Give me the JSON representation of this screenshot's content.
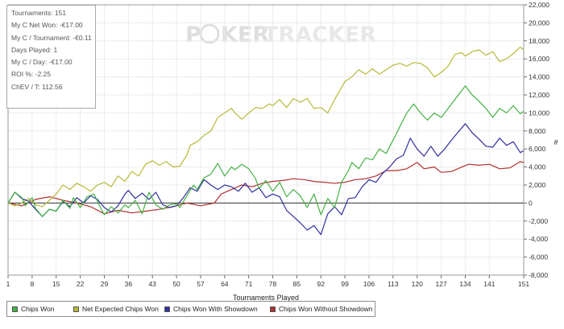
{
  "stats_box": {
    "lines": [
      "Tournaments: 151",
      "My C Net Won: -€17.00",
      "My C / Tournament: -€0.11",
      "Days Played: 1",
      "My C / Day: -€17.00",
      "ROI %: -2.25",
      "ChEV / T: 112.56"
    ]
  },
  "watermark": {
    "text_a": "P",
    "text_b": "KER",
    "text_c": "TRACKER"
  },
  "chart_data": {
    "type": "line",
    "title": "",
    "xlabel": "Tournaments Played",
    "ylabel": "",
    "y_axis_unit": "#",
    "x_range": [
      1,
      151
    ],
    "xlim": [
      1,
      151
    ],
    "ylim": [
      -8000,
      22000
    ],
    "x_ticks": [
      1,
      8,
      15,
      22,
      29,
      36,
      43,
      50,
      57,
      64,
      71,
      78,
      85,
      92,
      99,
      106,
      113,
      120,
      127,
      134,
      141,
      151
    ],
    "y_ticks": [
      -8000,
      -6000,
      -4000,
      -2000,
      0,
      2000,
      4000,
      6000,
      8000,
      10000,
      12000,
      14000,
      16000,
      18000,
      20000,
      22000
    ],
    "y_tick_labels": [
      "-8,000",
      "-6,000",
      "-4,000",
      "-2,000",
      "0",
      "2,000",
      "4,000",
      "6,000",
      "8,000",
      "10,000",
      "12,000",
      "14,000",
      "16,000",
      "18,000",
      "20,000",
      "22,000"
    ],
    "grid": true,
    "legend_position": "bottom-left",
    "series": [
      {
        "name": "Chips Won",
        "color": "#44b144",
        "points": [
          [
            1,
            0
          ],
          [
            3,
            1200
          ],
          [
            5,
            600
          ],
          [
            6,
            -300
          ],
          [
            8,
            600
          ],
          [
            9,
            -600
          ],
          [
            11,
            -1500
          ],
          [
            13,
            -700
          ],
          [
            15,
            -900
          ],
          [
            17,
            300
          ],
          [
            19,
            -600
          ],
          [
            20,
            600
          ],
          [
            22,
            -500
          ],
          [
            24,
            700
          ],
          [
            26,
            1000
          ],
          [
            28,
            -600
          ],
          [
            29,
            -1300
          ],
          [
            31,
            -400
          ],
          [
            33,
            -1100
          ],
          [
            35,
            -200
          ],
          [
            36,
            -500
          ],
          [
            38,
            300
          ],
          [
            40,
            -1200
          ],
          [
            42,
            1200
          ],
          [
            44,
            -200
          ],
          [
            46,
            -700
          ],
          [
            48,
            -200
          ],
          [
            50,
            -100
          ],
          [
            51,
            -500
          ],
          [
            53,
            800
          ],
          [
            55,
            2000
          ],
          [
            56,
            1500
          ],
          [
            58,
            2800
          ],
          [
            60,
            3200
          ],
          [
            62,
            4400
          ],
          [
            64,
            3000
          ],
          [
            66,
            4000
          ],
          [
            67,
            3700
          ],
          [
            69,
            4300
          ],
          [
            71,
            3800
          ],
          [
            73,
            2700
          ],
          [
            74,
            1600
          ],
          [
            76,
            2500
          ],
          [
            78,
            1300
          ],
          [
            80,
            2300
          ],
          [
            82,
            700
          ],
          [
            84,
            1500
          ],
          [
            86,
            800
          ],
          [
            88,
            -500
          ],
          [
            90,
            1000
          ],
          [
            92,
            -1300
          ],
          [
            94,
            500
          ],
          [
            96,
            -500
          ],
          [
            98,
            2300
          ],
          [
            100,
            3600
          ],
          [
            101,
            4500
          ],
          [
            103,
            3800
          ],
          [
            105,
            5000
          ],
          [
            107,
            4800
          ],
          [
            109,
            6000
          ],
          [
            111,
            5500
          ],
          [
            113,
            7000
          ],
          [
            115,
            8500
          ],
          [
            117,
            10000
          ],
          [
            119,
            11000
          ],
          [
            121,
            10000
          ],
          [
            123,
            9200
          ],
          [
            125,
            10000
          ],
          [
            127,
            9500
          ],
          [
            129,
            10500
          ],
          [
            131,
            11500
          ],
          [
            133,
            12500
          ],
          [
            134,
            13000
          ],
          [
            136,
            12000
          ],
          [
            138,
            11300
          ],
          [
            140,
            10500
          ],
          [
            142,
            9500
          ],
          [
            144,
            10500
          ],
          [
            146,
            10000
          ],
          [
            148,
            10800
          ],
          [
            150,
            9900
          ],
          [
            151,
            10200
          ]
        ]
      },
      {
        "name": "Net Expected Chips Won",
        "color": "#b8b838",
        "points": [
          [
            1,
            0
          ],
          [
            3,
            -300
          ],
          [
            5,
            0
          ],
          [
            7,
            500
          ],
          [
            9,
            -200
          ],
          [
            11,
            -400
          ],
          [
            13,
            300
          ],
          [
            15,
            1000
          ],
          [
            17,
            2000
          ],
          [
            19,
            1500
          ],
          [
            21,
            2200
          ],
          [
            23,
            1800
          ],
          [
            25,
            1300
          ],
          [
            27,
            2000
          ],
          [
            29,
            2300
          ],
          [
            31,
            1800
          ],
          [
            33,
            3000
          ],
          [
            35,
            2400
          ],
          [
            37,
            3500
          ],
          [
            39,
            3000
          ],
          [
            41,
            4300
          ],
          [
            43,
            4700
          ],
          [
            45,
            4200
          ],
          [
            47,
            4600
          ],
          [
            49,
            4000
          ],
          [
            51,
            4100
          ],
          [
            53,
            5300
          ],
          [
            54,
            6400
          ],
          [
            56,
            6800
          ],
          [
            58,
            7500
          ],
          [
            60,
            8000
          ],
          [
            62,
            9500
          ],
          [
            64,
            10000
          ],
          [
            66,
            10500
          ],
          [
            67,
            10000
          ],
          [
            69,
            9300
          ],
          [
            71,
            10000
          ],
          [
            73,
            10600
          ],
          [
            75,
            10500
          ],
          [
            77,
            11000
          ],
          [
            78,
            10800
          ],
          [
            80,
            11500
          ],
          [
            82,
            10600
          ],
          [
            84,
            11600
          ],
          [
            86,
            11200
          ],
          [
            88,
            11600
          ],
          [
            90,
            10500
          ],
          [
            92,
            10600
          ],
          [
            94,
            10000
          ],
          [
            96,
            11500
          ],
          [
            98,
            12800
          ],
          [
            99,
            13500
          ],
          [
            101,
            14000
          ],
          [
            103,
            14800
          ],
          [
            105,
            14300
          ],
          [
            107,
            14900
          ],
          [
            109,
            14300
          ],
          [
            111,
            14800
          ],
          [
            113,
            15300
          ],
          [
            115,
            15500
          ],
          [
            117,
            15200
          ],
          [
            119,
            15600
          ],
          [
            121,
            15500
          ],
          [
            123,
            15000
          ],
          [
            125,
            14000
          ],
          [
            127,
            14500
          ],
          [
            129,
            15200
          ],
          [
            131,
            16500
          ],
          [
            133,
            16700
          ],
          [
            134,
            16300
          ],
          [
            136,
            16800
          ],
          [
            138,
            17000
          ],
          [
            140,
            16400
          ],
          [
            142,
            16800
          ],
          [
            144,
            15700
          ],
          [
            146,
            16000
          ],
          [
            148,
            16600
          ],
          [
            150,
            17300
          ],
          [
            151,
            17000
          ]
        ]
      },
      {
        "name": "Chips Won With Showdown",
        "color": "#3030a0",
        "points": [
          [
            1,
            0
          ],
          [
            3,
            1200
          ],
          [
            5,
            500
          ],
          [
            7,
            200
          ],
          [
            9,
            -700
          ],
          [
            11,
            -1500
          ],
          [
            13,
            -700
          ],
          [
            15,
            -900
          ],
          [
            17,
            200
          ],
          [
            19,
            -400
          ],
          [
            21,
            600
          ],
          [
            23,
            0
          ],
          [
            25,
            800
          ],
          [
            27,
            400
          ],
          [
            29,
            -500
          ],
          [
            31,
            -1000
          ],
          [
            33,
            -300
          ],
          [
            35,
            1000
          ],
          [
            36,
            1400
          ],
          [
            38,
            500
          ],
          [
            40,
            1100
          ],
          [
            42,
            400
          ],
          [
            44,
            1200
          ],
          [
            46,
            -200
          ],
          [
            48,
            -500
          ],
          [
            50,
            -300
          ],
          [
            52,
            600
          ],
          [
            54,
            1700
          ],
          [
            56,
            1300
          ],
          [
            58,
            2600
          ],
          [
            60,
            2000
          ],
          [
            62,
            1500
          ],
          [
            64,
            2000
          ],
          [
            66,
            1800
          ],
          [
            68,
            1300
          ],
          [
            70,
            2200
          ],
          [
            72,
            1200
          ],
          [
            74,
            1700
          ],
          [
            76,
            600
          ],
          [
            78,
            1000
          ],
          [
            80,
            700
          ],
          [
            82,
            -800
          ],
          [
            84,
            -1500
          ],
          [
            86,
            -2200
          ],
          [
            88,
            -3000
          ],
          [
            90,
            -2500
          ],
          [
            92,
            -3500
          ],
          [
            94,
            -1200
          ],
          [
            96,
            -400
          ],
          [
            98,
            -1300
          ],
          [
            100,
            500
          ],
          [
            102,
            600
          ],
          [
            104,
            1800
          ],
          [
            106,
            2600
          ],
          [
            108,
            2300
          ],
          [
            110,
            3300
          ],
          [
            112,
            4000
          ],
          [
            114,
            4900
          ],
          [
            116,
            5300
          ],
          [
            118,
            7200
          ],
          [
            120,
            6000
          ],
          [
            122,
            5200
          ],
          [
            124,
            6300
          ],
          [
            126,
            5200
          ],
          [
            128,
            6000
          ],
          [
            130,
            7000
          ],
          [
            132,
            7900
          ],
          [
            134,
            8800
          ],
          [
            136,
            7800
          ],
          [
            138,
            7100
          ],
          [
            140,
            6300
          ],
          [
            142,
            6200
          ],
          [
            144,
            7200
          ],
          [
            146,
            6400
          ],
          [
            148,
            6800
          ],
          [
            150,
            5600
          ],
          [
            151,
            5800
          ]
        ]
      },
      {
        "name": "Chips Won Without Showdown",
        "color": "#b03030",
        "points": [
          [
            1,
            0
          ],
          [
            5,
            -300
          ],
          [
            9,
            400
          ],
          [
            13,
            700
          ],
          [
            17,
            300
          ],
          [
            21,
            0
          ],
          [
            25,
            -400
          ],
          [
            29,
            -1200
          ],
          [
            33,
            -800
          ],
          [
            37,
            -1100
          ],
          [
            41,
            -900
          ],
          [
            45,
            -700
          ],
          [
            49,
            -400
          ],
          [
            53,
            0
          ],
          [
            57,
            -300
          ],
          [
            61,
            0
          ],
          [
            63,
            1000
          ],
          [
            66,
            1500
          ],
          [
            69,
            2000
          ],
          [
            72,
            1800
          ],
          [
            75,
            2200
          ],
          [
            78,
            2400
          ],
          [
            81,
            2500
          ],
          [
            84,
            2700
          ],
          [
            87,
            2600
          ],
          [
            90,
            2400
          ],
          [
            93,
            2300
          ],
          [
            96,
            2200
          ],
          [
            99,
            2300
          ],
          [
            102,
            2600
          ],
          [
            105,
            2700
          ],
          [
            108,
            3000
          ],
          [
            111,
            3600
          ],
          [
            114,
            3600
          ],
          [
            117,
            3800
          ],
          [
            120,
            4500
          ],
          [
            122,
            3800
          ],
          [
            125,
            4000
          ],
          [
            127,
            3400
          ],
          [
            130,
            3500
          ],
          [
            133,
            4000
          ],
          [
            135,
            4300
          ],
          [
            138,
            4200
          ],
          [
            141,
            4300
          ],
          [
            144,
            3800
          ],
          [
            147,
            3900
          ],
          [
            150,
            4600
          ],
          [
            151,
            4500
          ]
        ]
      }
    ]
  }
}
